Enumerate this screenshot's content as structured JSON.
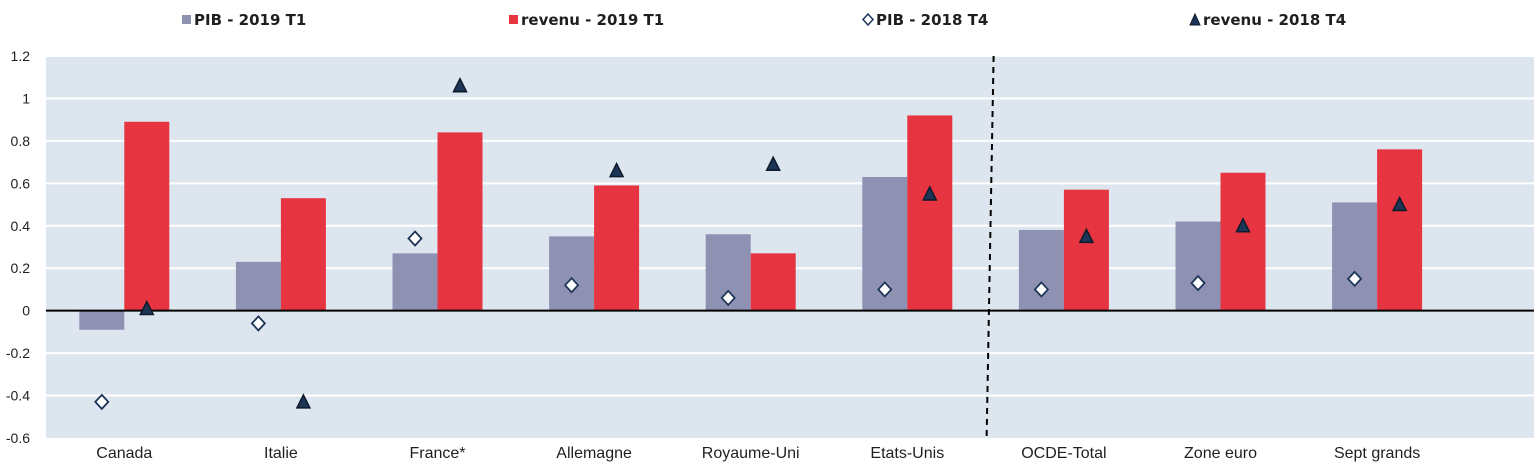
{
  "chart_data": {
    "type": "bar",
    "categories": [
      "Canada",
      "Italie",
      "France*",
      "Allemagne",
      "Royaume-Uni",
      "Etats-Unis",
      "OCDE-Total",
      "Zone euro",
      "Sept grands"
    ],
    "series": [
      {
        "name": "PIB - 2019 T1",
        "kind": "bar",
        "color": "#8f91b3",
        "values": [
          -0.09,
          0.23,
          0.27,
          0.35,
          0.36,
          0.63,
          0.38,
          0.42,
          0.51
        ]
      },
      {
        "name": "revenu - 2019 T1",
        "kind": "bar",
        "color": "#e63440",
        "values": [
          0.89,
          0.53,
          0.84,
          0.59,
          0.27,
          0.92,
          0.57,
          0.65,
          0.76
        ]
      },
      {
        "name": "PIB - 2018 T4",
        "kind": "marker",
        "marker": "diamond-open",
        "values": [
          -0.43,
          -0.06,
          0.34,
          0.12,
          0.06,
          0.1,
          0.1,
          0.13,
          0.15
        ]
      },
      {
        "name": "revenu - 2018 T4",
        "kind": "marker",
        "marker": "triangle",
        "color": "#1d3557",
        "values": [
          0.01,
          -0.43,
          1.06,
          0.66,
          0.69,
          0.55,
          0.35,
          0.4,
          0.5
        ]
      }
    ],
    "ylim": [
      -0.6,
      1.2
    ],
    "yticks": [
      "1.2",
      "1",
      "0.8",
      "0.6",
      "0.4",
      "0.2",
      "0",
      "-0.2",
      "-0.4",
      "-0.6"
    ],
    "ytick_values": [
      1.2,
      1,
      0.8,
      0.6,
      0.4,
      0.2,
      0,
      -0.2,
      -0.4,
      -0.6
    ],
    "divider_after_category": "Etats-Unis",
    "grid": true,
    "legend_position": "top",
    "plot_background": "#dde6ee"
  }
}
